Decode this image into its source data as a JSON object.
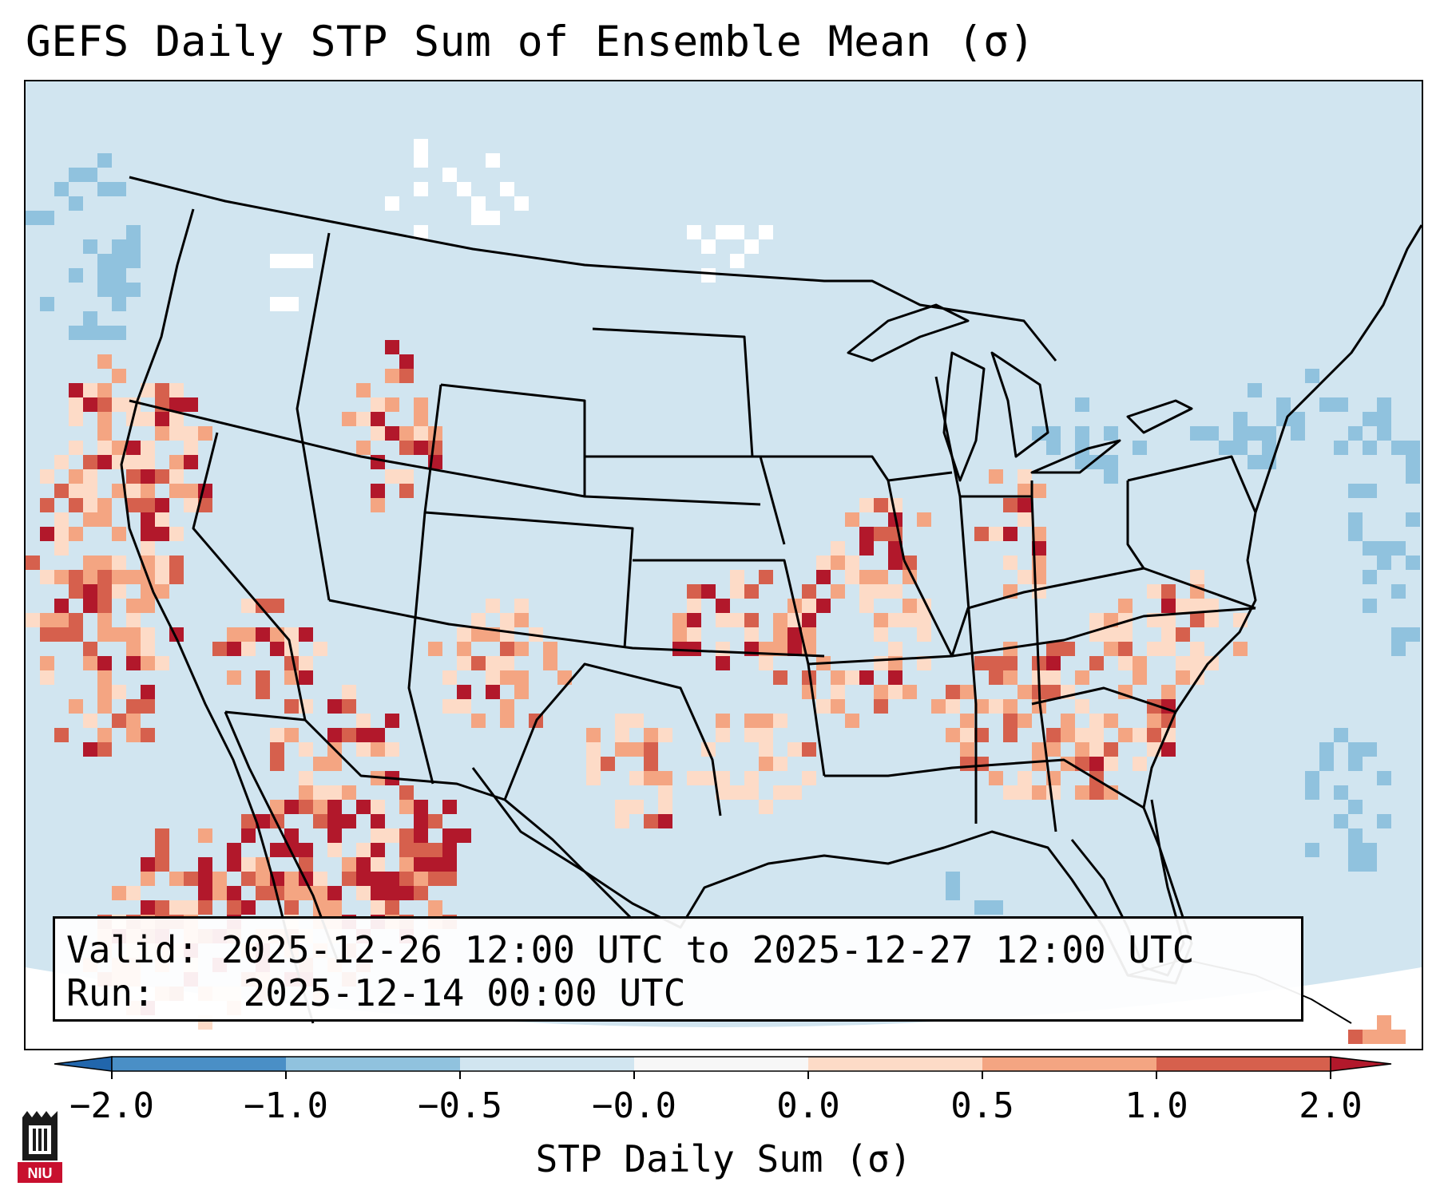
{
  "title": "GEFS Daily STP Sum of Ensemble Mean (σ)",
  "info": {
    "valid_label": "Valid:",
    "valid_value": "2025-12-26 12:00 UTC to 2025-12-27 12:00 UTC",
    "run_label": "Run:",
    "run_value": "2025-12-14 00:00 UTC"
  },
  "colorbar": {
    "label": "STP Daily Sum (σ)",
    "ticks": [
      "−2.0",
      "−1.0",
      "−0.5",
      "−0.0",
      "0.0",
      "0.5",
      "1.0",
      "2.0"
    ],
    "bins": [
      {
        "from": -2.0,
        "to": -1.0,
        "color": "#4a8fc6"
      },
      {
        "from": -1.0,
        "to": -0.5,
        "color": "#90c2de"
      },
      {
        "from": -0.5,
        "to": -0.0,
        "color": "#d1e5f0"
      },
      {
        "from": -0.0,
        "to": 0.0,
        "color": "#f7f7f7"
      },
      {
        "from": 0.0,
        "to": 0.5,
        "color": "#fddbc7"
      },
      {
        "from": 0.5,
        "to": 1.0,
        "color": "#f4a582"
      },
      {
        "from": 1.0,
        "to": 2.0,
        "color": "#d6604d"
      }
    ],
    "under_color": "#2166ac",
    "over_color": "#b2182b"
  },
  "colors": {
    "ocean_background": "#d1e5f0",
    "border_line": "#000000"
  },
  "logo": {
    "text": "NIU",
    "color": "#c8102e"
  }
}
